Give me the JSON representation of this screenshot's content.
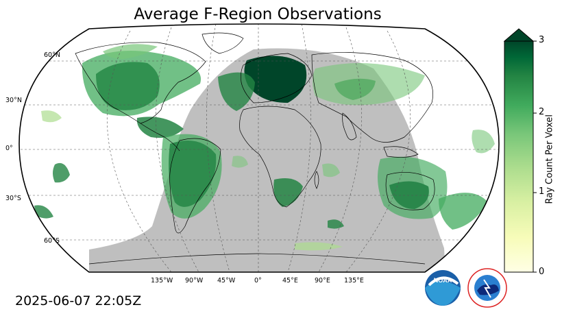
{
  "title": "Average F-Region Observations",
  "timestamp": "2025-06-07 22:05Z",
  "colorbar": {
    "label": "Ray Count Per Voxel",
    "ticks": [
      "0",
      "1",
      "2",
      "3"
    ],
    "min": 0,
    "max": 3,
    "extend": "max",
    "colors": [
      "#ffffe5",
      "#f7fcb9",
      "#d9f0a3",
      "#addd8e",
      "#78c679",
      "#41ab5d",
      "#238443",
      "#006837",
      "#004529"
    ]
  },
  "grid": {
    "lat_labels": [
      "60°N",
      "30°N",
      "0°",
      "30°S",
      "60°S"
    ],
    "lon_labels": [
      "135°W",
      "90°W",
      "45°W",
      "0°",
      "45°E",
      "90°E",
      "135°E"
    ]
  },
  "colors": {
    "night_shade": "#bfbfbf",
    "land_outline": "#000000",
    "gridline": "#555555"
  },
  "logos": {
    "noaa": "NOAA",
    "nws": "NATIONAL WEATHER SERVICE"
  }
}
